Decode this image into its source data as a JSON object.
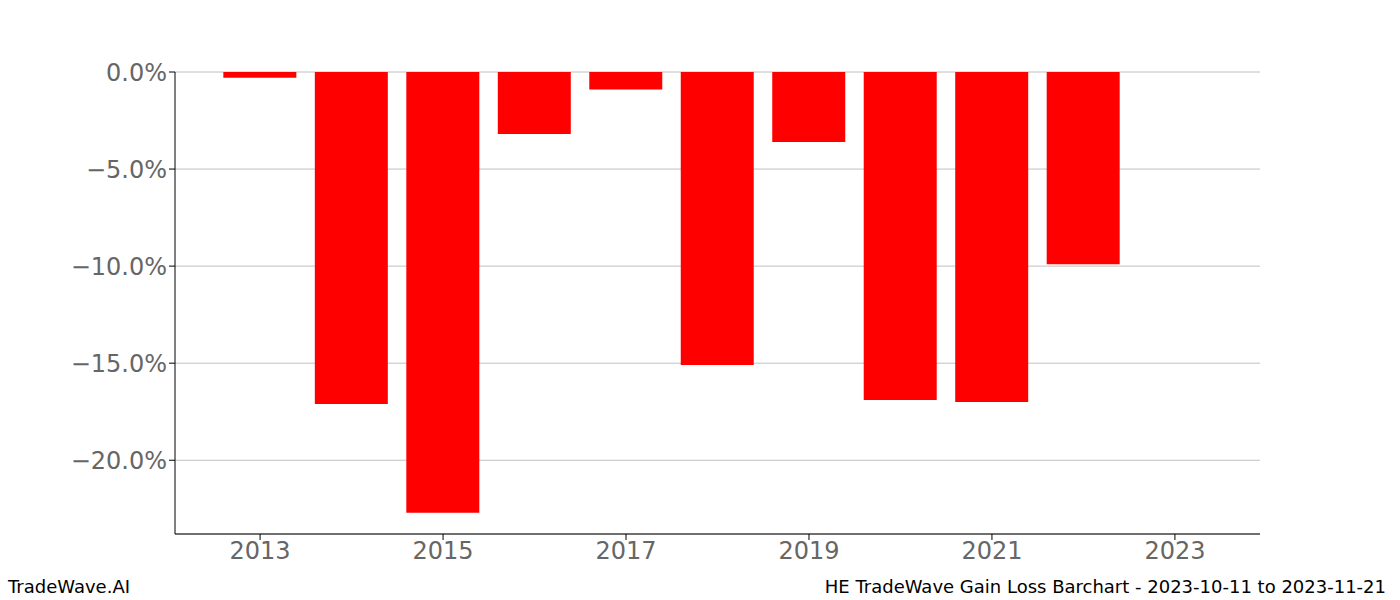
{
  "chart_data": {
    "type": "bar",
    "x": [
      2013,
      2014,
      2015,
      2016,
      2017,
      2018,
      2019,
      2020,
      2021,
      2022
    ],
    "values": [
      -0.3,
      -17.1,
      -22.7,
      -3.2,
      -0.9,
      -15.1,
      -3.6,
      -16.9,
      -17.0,
      -9.9
    ],
    "color": "#ff0000",
    "xlim": [
      2012.07,
      2023.93
    ],
    "xticks": [
      2013,
      2015,
      2017,
      2019,
      2021,
      2023
    ],
    "ylim": [
      -23.8,
      0
    ],
    "yticks": [
      {
        "value": 0,
        "label": "0.0%"
      },
      {
        "value": -5,
        "label": "−5.0%"
      },
      {
        "value": -10,
        "label": "−10.0%"
      },
      {
        "value": -15,
        "label": "−15.0%"
      },
      {
        "value": -20,
        "label": "−20.0%"
      }
    ],
    "grid": true,
    "source": "TradeWave.AI",
    "caption": "HE TradeWave Gain Loss Barchart - 2023-10-11 to 2023-11-21"
  }
}
